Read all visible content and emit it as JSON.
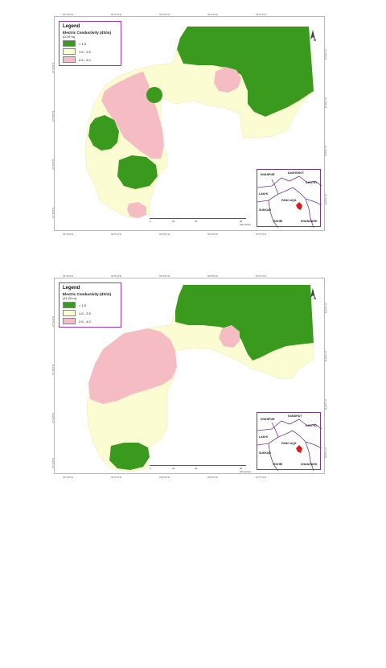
{
  "colors": {
    "low": "#3a9a1e",
    "mid": "#fcfcd2",
    "high": "#f6bcc3",
    "border": "#9a3ab5",
    "district": "#7a3a8a"
  },
  "maps": [
    {
      "legend": {
        "title": "Legend",
        "subtitle1": "Electric Conductivity (dS/m)",
        "subtitle2": "(0-10 m)",
        "items": [
          {
            "label": "< 1.5",
            "color": "#3a9a1e"
          },
          {
            "label": "1.5 - 2.5",
            "color": "#fcfcd2"
          },
          {
            "label": "2.6 - 4.0",
            "color": "#f6bcc3"
          }
        ]
      },
      "coords_top": [
        "69°49'0\"E",
        "69°51'0\"E",
        "69°53'0\"E",
        "69°55'0\"E",
        "69°57'0\"E"
      ],
      "coords_bottom": [
        "69°49'0\"E",
        "69°51'0\"E",
        "69°53'0\"E",
        "69°55'0\"E",
        "69°57'0\"E"
      ],
      "coords_left": [
        "27°42'0\"N",
        "27°40'0\"N",
        "27°38'0\"N",
        "27°36'0\"N"
      ],
      "coords_right": [
        "27°42'0\"N",
        "27°40'0\"N",
        "27°38'0\"N",
        "27°36'0\"N"
      ],
      "scale": [
        "0",
        "20",
        "40",
        "80 Kilometers"
      ],
      "north": "N",
      "inset_places": [
        "KHANPUR",
        "KASHGHOT",
        "GHOTKI",
        "LAKHI",
        "PANO AQIL",
        "SUKKUR",
        "ROHRI",
        "KHANGARH"
      ]
    },
    {
      "legend": {
        "title": "Legend",
        "subtitle1": "Electric Conductivity (dS/m)",
        "subtitle2": "(11-20 m)",
        "items": [
          {
            "label": "< 1.5",
            "color": "#3a9a1e"
          },
          {
            "label": "1.5 - 2.5",
            "color": "#fcfcd2"
          },
          {
            "label": "2.6 - 4.0",
            "color": "#f6bcc3"
          }
        ]
      },
      "coords_top": [
        "69°49'0\"E",
        "69°51'0\"E",
        "69°53'0\"E",
        "69°55'0\"E",
        "69°57'0\"E"
      ],
      "coords_bottom": [
        "69°49'0\"E",
        "69°51'0\"E",
        "69°53'0\"E",
        "69°55'0\"E",
        "69°57'0\"E"
      ],
      "coords_left": [
        "27°42'0\"N",
        "27°40'0\"N",
        "27°38'0\"N",
        "27°36'0\"N"
      ],
      "coords_right": [
        "27°42'0\"N",
        "27°40'0\"N",
        "27°38'0\"N",
        "27°36'0\"N"
      ],
      "scale": [
        "0",
        "20",
        "40",
        "80 Kilometers"
      ],
      "north": "N",
      "inset_places": [
        "KHANPUR",
        "KANDHOT",
        "GHOTKI",
        "LAKHI",
        "PANO AQIL",
        "SUKKUR",
        "ROHRI",
        "KHANGARH"
      ]
    }
  ]
}
